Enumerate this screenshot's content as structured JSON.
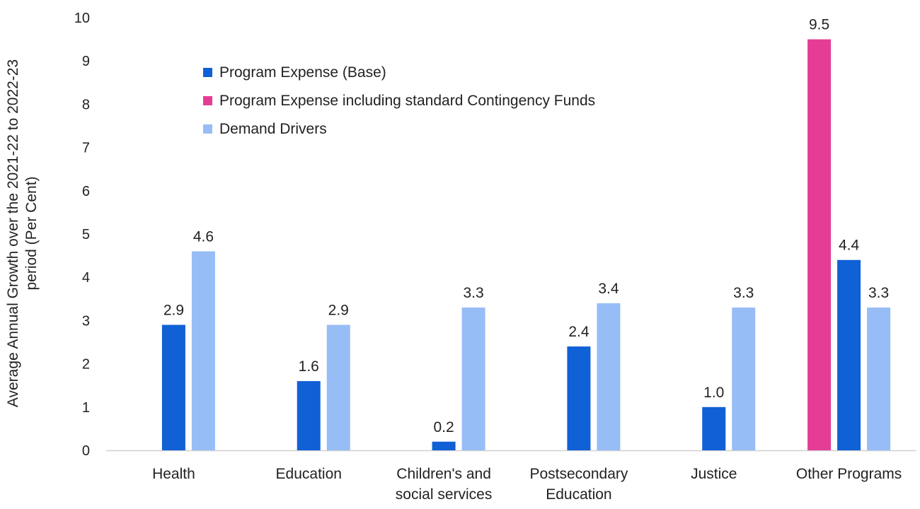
{
  "chart_data": {
    "type": "bar",
    "ylabel_lines": [
      "Average Annual Growth over the 2021-22 to 2022-23",
      "period (Per Cent)"
    ],
    "ylim": [
      0,
      10
    ],
    "yticks": [
      "0",
      "1",
      "2",
      "3",
      "4",
      "5",
      "6",
      "7",
      "8",
      "9",
      "10"
    ],
    "categories": [
      [
        "Health"
      ],
      [
        "Education"
      ],
      [
        "Children's and",
        "social services"
      ],
      [
        "Postsecondary",
        "Education"
      ],
      [
        "Justice"
      ],
      [
        "Other Programs"
      ]
    ],
    "series": [
      {
        "name": "Program Expense (Base)",
        "color": "#1060d6",
        "values": [
          2.9,
          1.6,
          0.2,
          2.4,
          1.0,
          4.4
        ],
        "labels": [
          "2.9",
          "1.6",
          "0.2",
          "2.4",
          "1.0",
          "4.4"
        ]
      },
      {
        "name": "Program Expense including standard Contingency Funds",
        "color": "#e53d96",
        "values": [
          null,
          null,
          null,
          null,
          null,
          9.5
        ],
        "labels": [
          null,
          null,
          null,
          null,
          null,
          "9.5"
        ]
      },
      {
        "name": "Demand Drivers",
        "color": "#97bdf6",
        "values": [
          4.6,
          2.9,
          3.3,
          3.4,
          3.3,
          3.3
        ],
        "labels": [
          "4.6",
          "2.9",
          "3.3",
          "3.4",
          "3.3",
          "3.3"
        ]
      }
    ],
    "legend_position": "top-left",
    "grid": false
  }
}
